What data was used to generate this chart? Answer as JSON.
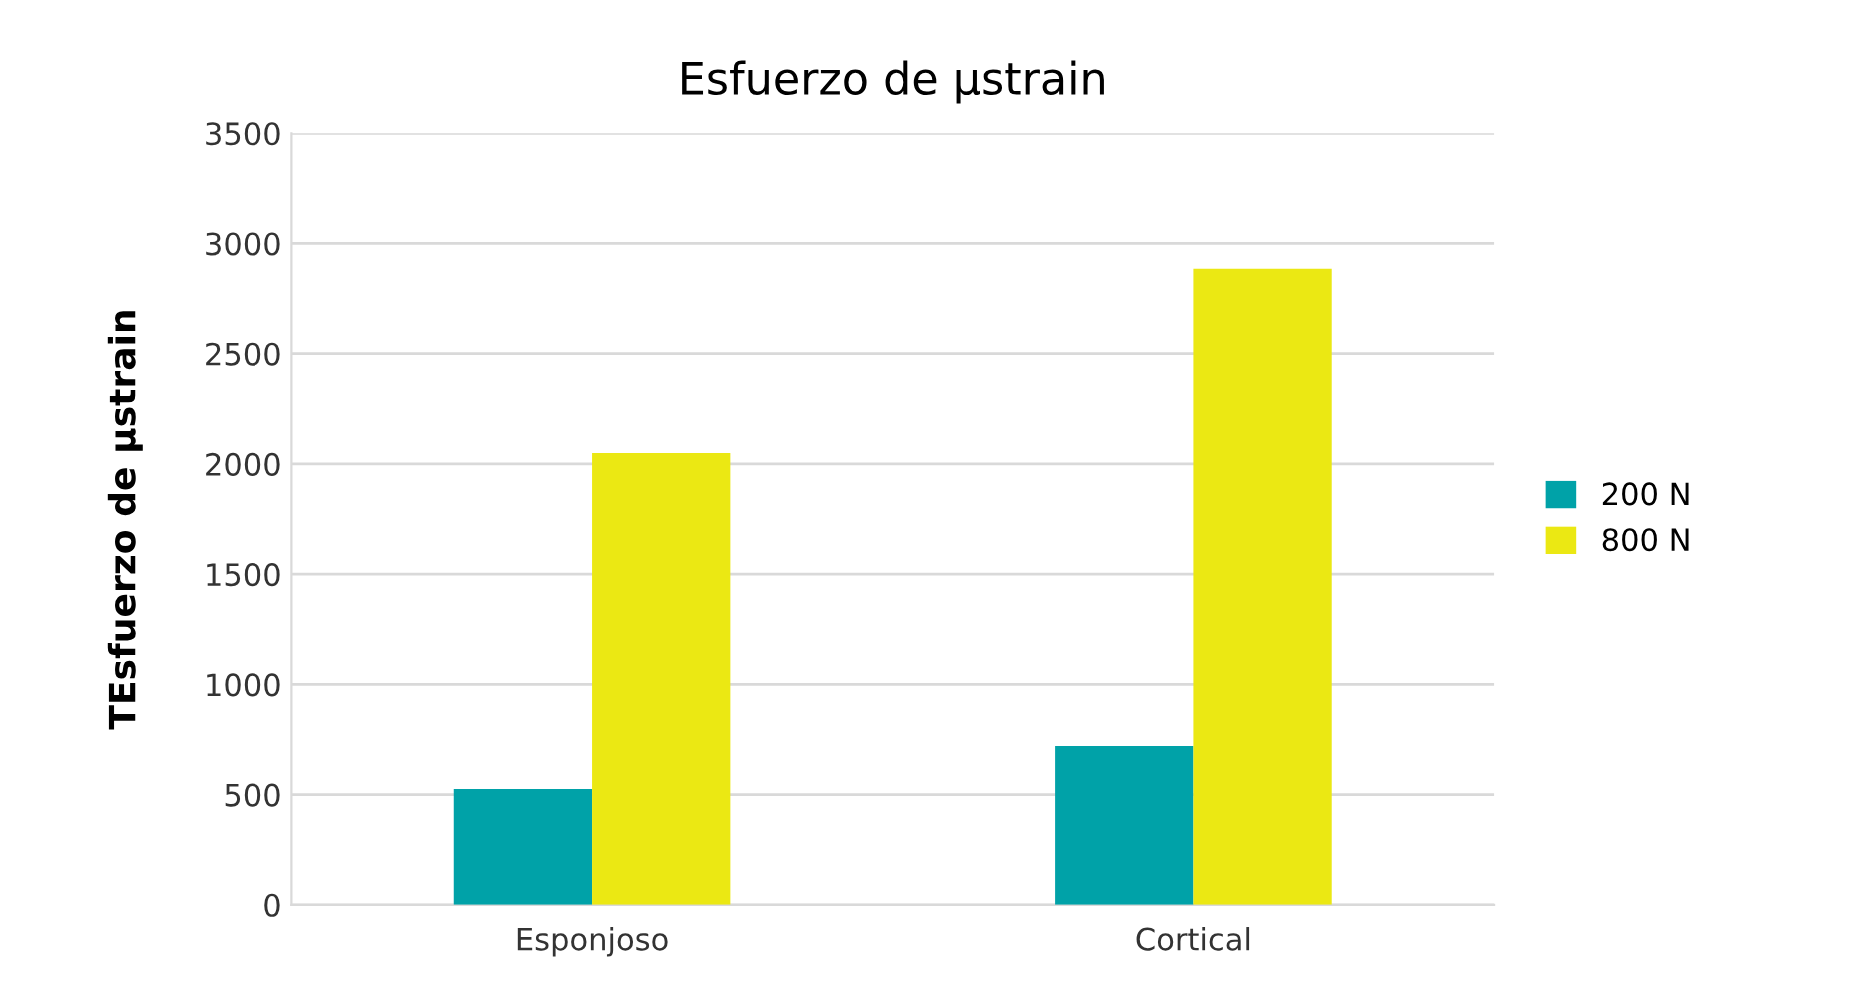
{
  "chart_data": {
    "type": "bar",
    "title": "Esfuerzo de µstrain",
    "ylabel": "TEsfuerzo de µstrain",
    "categories": [
      "Esponjoso",
      "Cortical"
    ],
    "series": [
      {
        "name": "200 N",
        "color": "#00a2a8",
        "values": [
          525,
          720
        ]
      },
      {
        "name": "800 N",
        "color": "#ebe813",
        "values": [
          2050,
          2885
        ]
      }
    ],
    "ylim": [
      0,
      3500
    ],
    "yticks": [
      0,
      500,
      1000,
      1500,
      2000,
      2500,
      3000,
      3500
    ],
    "grid": "y",
    "legend": "right"
  }
}
